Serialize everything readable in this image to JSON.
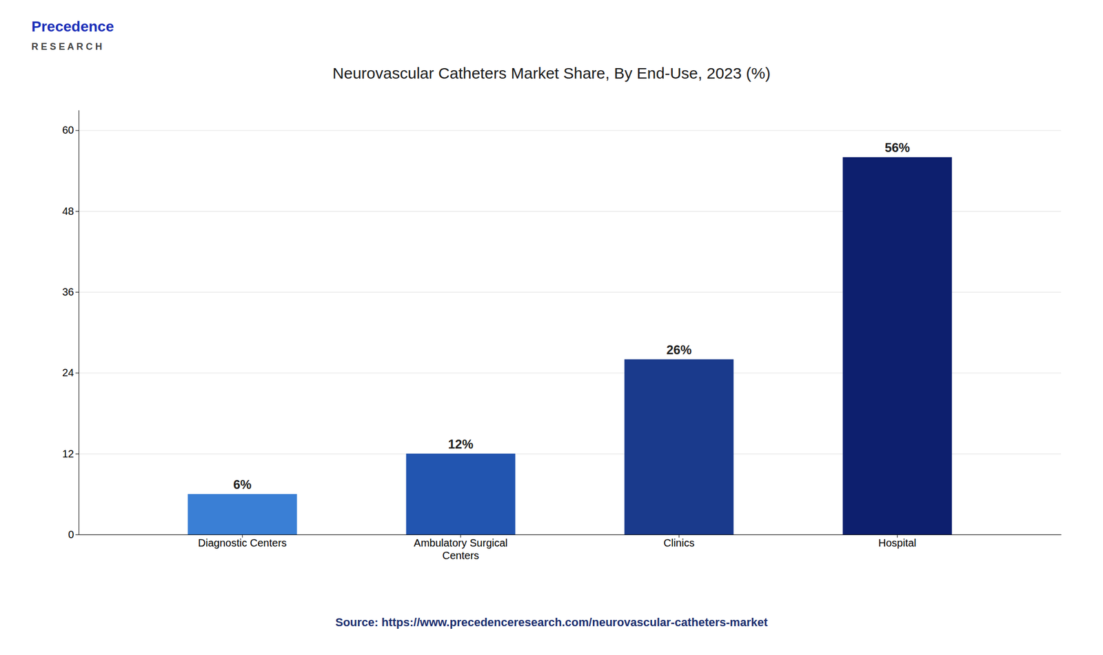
{
  "chart_data": {
    "type": "bar",
    "title": "Neurovascular Catheters Market Share, By End-Use, 2023 (%)",
    "annotations": [
      "Source: https://www.precedenceresearch.com/neurovascular-catheters-market",
      "Precedence",
      "R E S E A R C H"
    ],
    "categories": [
      "Diagnostic Centers",
      "Ambulatory Surgical\nCenters",
      "Clinics",
      "Hospital"
    ],
    "values": [
      6,
      12,
      26,
      56
    ],
    "value_labels": [
      "6%",
      "12%",
      "26%",
      "56%"
    ],
    "colors": [
      "#3a7fd5",
      "#2255b0",
      "#1a3a8c",
      "#0d1f6e"
    ],
    "ylim": [
      0,
      63
    ],
    "yticks": [
      0,
      12,
      24,
      36,
      48,
      60
    ],
    "grid": true,
    "data_labels": true
  }
}
